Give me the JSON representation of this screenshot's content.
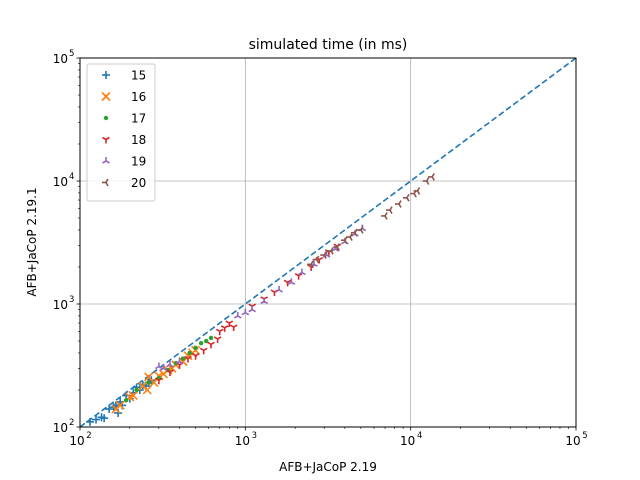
{
  "chart_data": {
    "type": "scatter",
    "title": "simulated time (in ms)",
    "xlabel": "AFB+JaCoP 2.19",
    "ylabel": "AFB+JaCoP 2.19.1",
    "xscale": "log",
    "yscale": "log",
    "xlim": [
      100,
      100000
    ],
    "ylim": [
      100,
      100000
    ],
    "x_ticks": [
      {
        "base": "10",
        "exp": "2"
      },
      {
        "base": "10",
        "exp": "3"
      },
      {
        "base": "10",
        "exp": "4"
      },
      {
        "base": "10",
        "exp": "5"
      }
    ],
    "y_ticks": [
      {
        "base": "10",
        "exp": "2"
      },
      {
        "base": "10",
        "exp": "3"
      },
      {
        "base": "10",
        "exp": "4"
      },
      {
        "base": "10",
        "exp": "5"
      }
    ],
    "grid": true,
    "legend_position": "top-left",
    "reference_line": {
      "style": "dashed",
      "color": "#1f77b4",
      "from": [
        100,
        100
      ],
      "to": [
        100000,
        100000
      ]
    },
    "series": [
      {
        "name": "15",
        "marker": "plus",
        "color": "#1f77b4",
        "points": [
          [
            115,
            110
          ],
          [
            125,
            115
          ],
          [
            135,
            120
          ],
          [
            140,
            118
          ],
          [
            150,
            140
          ],
          [
            160,
            145
          ],
          [
            165,
            150
          ],
          [
            170,
            130
          ],
          [
            175,
            160
          ],
          [
            180,
            150
          ],
          [
            190,
            180
          ],
          [
            200,
            170
          ],
          [
            210,
            190
          ],
          [
            220,
            210
          ],
          [
            230,
            200
          ],
          [
            240,
            220
          ],
          [
            250,
            215
          ],
          [
            260,
            230
          ],
          [
            270,
            240
          ]
        ]
      },
      {
        "name": "16",
        "marker": "x",
        "color": "#ff7f0e",
        "points": [
          [
            165,
            140
          ],
          [
            175,
            150
          ],
          [
            200,
            175
          ],
          [
            210,
            180
          ],
          [
            240,
            215
          ],
          [
            255,
            200
          ],
          [
            260,
            255
          ],
          [
            280,
            230
          ],
          [
            300,
            260
          ],
          [
            320,
            270
          ],
          [
            340,
            290
          ],
          [
            360,
            300
          ],
          [
            380,
            320
          ],
          [
            420,
            340
          ],
          [
            450,
            380
          ],
          [
            480,
            400
          ],
          [
            500,
            420
          ]
        ]
      },
      {
        "name": "17",
        "marker": "dot",
        "color": "#2ca02c",
        "points": [
          [
            190,
            165
          ],
          [
            220,
            200
          ],
          [
            260,
            230
          ],
          [
            300,
            250
          ],
          [
            340,
            290
          ],
          [
            380,
            330
          ],
          [
            420,
            360
          ],
          [
            460,
            400
          ],
          [
            500,
            440
          ],
          [
            540,
            480
          ],
          [
            580,
            500
          ],
          [
            620,
            530
          ]
        ]
      },
      {
        "name": "18",
        "marker": "tri_down",
        "color": "#d62728",
        "points": [
          [
            300,
            240
          ],
          [
            350,
            280
          ],
          [
            400,
            320
          ],
          [
            450,
            360
          ],
          [
            500,
            380
          ],
          [
            560,
            420
          ],
          [
            620,
            470
          ],
          [
            680,
            520
          ],
          [
            700,
            600
          ],
          [
            750,
            640
          ],
          [
            800,
            700
          ],
          [
            850,
            650
          ],
          [
            1100,
            960
          ],
          [
            1300,
            1100
          ],
          [
            1500,
            1250
          ],
          [
            1800,
            1500
          ],
          [
            2100,
            1700
          ],
          [
            2500,
            2000
          ],
          [
            2800,
            2300
          ],
          [
            3200,
            2650
          ],
          [
            3600,
            2950
          ]
        ]
      },
      {
        "name": "19",
        "marker": "tri_up",
        "color": "#9467bd",
        "points": [
          [
            300,
            310
          ],
          [
            320,
            300
          ],
          [
            350,
            320
          ],
          [
            400,
            340
          ],
          [
            900,
            800
          ],
          [
            1000,
            850
          ],
          [
            1100,
            900
          ],
          [
            1300,
            1050
          ],
          [
            1600,
            1300
          ],
          [
            1900,
            1500
          ],
          [
            2200,
            1800
          ],
          [
            2600,
            2100
          ],
          [
            3100,
            2500
          ],
          [
            3500,
            2800
          ],
          [
            4000,
            3200
          ],
          [
            4600,
            3700
          ],
          [
            5100,
            4100
          ]
        ]
      },
      {
        "name": "20",
        "marker": "tri_left",
        "color": "#8c564b",
        "points": [
          [
            2500,
            2100
          ],
          [
            2700,
            2300
          ],
          [
            3000,
            2500
          ],
          [
            3300,
            2700
          ],
          [
            3600,
            2900
          ],
          [
            4000,
            3300
          ],
          [
            4300,
            3500
          ],
          [
            4600,
            3800
          ],
          [
            5000,
            4000
          ],
          [
            7000,
            5200
          ],
          [
            7500,
            5800
          ],
          [
            8500,
            6500
          ],
          [
            9500,
            7300
          ],
          [
            10500,
            7900
          ],
          [
            11000,
            8300
          ],
          [
            12500,
            10000
          ],
          [
            13500,
            10800
          ]
        ]
      }
    ]
  }
}
